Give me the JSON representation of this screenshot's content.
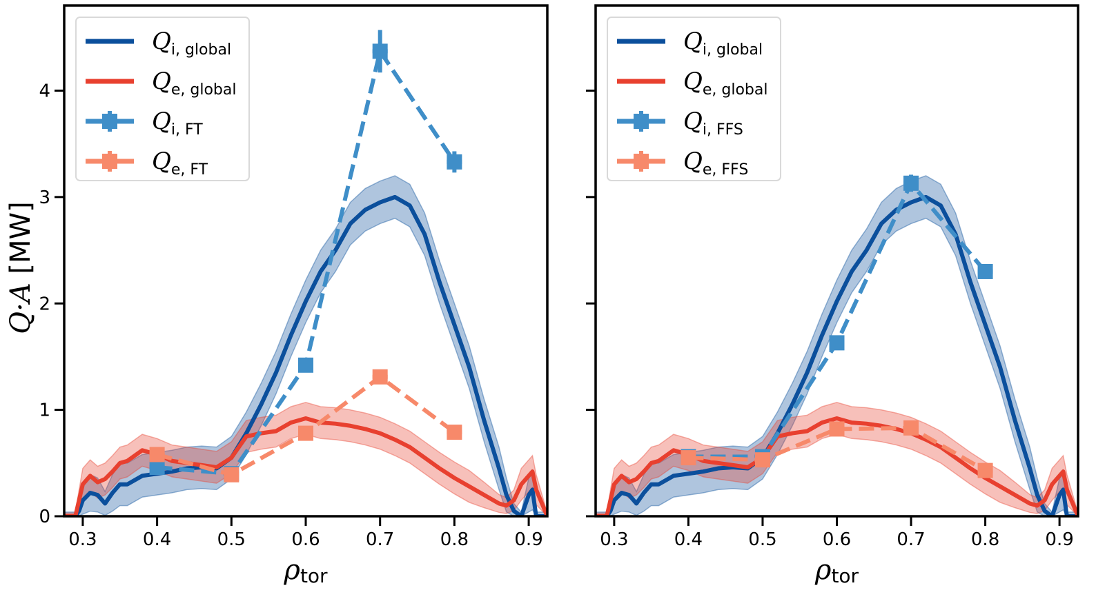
{
  "chart_data": [
    {
      "type": "line",
      "panel": "left",
      "xlabel": "ρtor",
      "ylabel": "Q·A [MW]",
      "xlim": [
        0.275,
        0.925
      ],
      "ylim": [
        0,
        4.8
      ],
      "xticks": [
        "0.3",
        "0.4",
        "0.5",
        "0.6",
        "0.7",
        "0.8",
        "0.9"
      ],
      "yticks": [
        "0",
        "1",
        "2",
        "3",
        "4"
      ],
      "legend_position": "top-left",
      "series": [
        {
          "name": "Q_i,global",
          "legend_main": "Q",
          "legend_sub": "i, global",
          "color": "#0b4f9c",
          "style": "solid-with-band",
          "x": [
            0.275,
            0.29,
            0.295,
            0.3,
            0.31,
            0.32,
            0.33,
            0.34,
            0.35,
            0.36,
            0.38,
            0.4,
            0.42,
            0.44,
            0.46,
            0.48,
            0.5,
            0.52,
            0.54,
            0.56,
            0.58,
            0.6,
            0.62,
            0.64,
            0.66,
            0.68,
            0.7,
            0.72,
            0.74,
            0.76,
            0.78,
            0.8,
            0.82,
            0.84,
            0.86,
            0.87,
            0.88,
            0.89,
            0.9,
            0.905,
            0.91,
            0.925
          ],
          "y": [
            0,
            0,
            0.05,
            0.15,
            0.22,
            0.2,
            0.12,
            0.22,
            0.3,
            0.3,
            0.38,
            0.4,
            0.42,
            0.45,
            0.46,
            0.45,
            0.55,
            0.78,
            1.05,
            1.35,
            1.7,
            2.02,
            2.3,
            2.5,
            2.75,
            2.88,
            2.95,
            3.0,
            2.92,
            2.65,
            2.2,
            1.8,
            1.4,
            0.9,
            0.45,
            0.2,
            0.05,
            0,
            0.2,
            0.25,
            0,
            0
          ],
          "band": 0.2
        },
        {
          "name": "Q_e,global",
          "legend_main": "Q",
          "legend_sub": "e, global",
          "color": "#e8402f",
          "style": "solid-with-band",
          "x": [
            0.275,
            0.29,
            0.295,
            0.3,
            0.31,
            0.32,
            0.33,
            0.34,
            0.35,
            0.36,
            0.38,
            0.4,
            0.42,
            0.44,
            0.46,
            0.48,
            0.5,
            0.52,
            0.54,
            0.56,
            0.58,
            0.6,
            0.62,
            0.64,
            0.66,
            0.68,
            0.7,
            0.72,
            0.74,
            0.76,
            0.78,
            0.8,
            0.82,
            0.84,
            0.86,
            0.87,
            0.88,
            0.89,
            0.9,
            0.905,
            0.91,
            0.925
          ],
          "y": [
            0,
            0,
            0.15,
            0.3,
            0.38,
            0.32,
            0.35,
            0.42,
            0.5,
            0.52,
            0.62,
            0.58,
            0.52,
            0.5,
            0.48,
            0.46,
            0.55,
            0.75,
            0.78,
            0.8,
            0.88,
            0.92,
            0.88,
            0.87,
            0.85,
            0.82,
            0.78,
            0.72,
            0.65,
            0.55,
            0.45,
            0.36,
            0.28,
            0.2,
            0.12,
            0.1,
            0.15,
            0.3,
            0.38,
            0.42,
            0.25,
            0
          ],
          "band": 0.15
        },
        {
          "name": "Q_i,FT",
          "legend_main": "Q",
          "legend_sub": "i, FT",
          "color": "#3f8ec8",
          "style": "dashed-markers",
          "x": [
            0.4,
            0.5,
            0.6,
            0.7,
            0.8
          ],
          "y": [
            0.46,
            0.4,
            1.42,
            4.37,
            3.33
          ],
          "yerr": [
            0.03,
            0.03,
            0.06,
            0.2,
            0.1
          ]
        },
        {
          "name": "Q_e,FT",
          "legend_main": "Q",
          "legend_sub": "e, FT",
          "color": "#f7896a",
          "style": "dashed-markers",
          "x": [
            0.4,
            0.5,
            0.6,
            0.7,
            0.8
          ],
          "y": [
            0.58,
            0.39,
            0.78,
            1.31,
            0.79
          ],
          "yerr": [
            0.03,
            0.03,
            0.03,
            0.05,
            0.03
          ]
        }
      ]
    },
    {
      "type": "line",
      "panel": "right",
      "xlabel": "ρtor",
      "ylabel": "",
      "xlim": [
        0.275,
        0.925
      ],
      "ylim": [
        0,
        4.8
      ],
      "xticks": [
        "0.3",
        "0.4",
        "0.5",
        "0.6",
        "0.7",
        "0.8",
        "0.9"
      ],
      "yticks": [
        "0",
        "1",
        "2",
        "3",
        "4"
      ],
      "legend_position": "top-left",
      "series": [
        {
          "name": "Q_i,global",
          "legend_main": "Q",
          "legend_sub": "i, global",
          "color": "#0b4f9c",
          "style": "solid-with-band",
          "x": [
            0.275,
            0.29,
            0.295,
            0.3,
            0.31,
            0.32,
            0.33,
            0.34,
            0.35,
            0.36,
            0.38,
            0.4,
            0.42,
            0.44,
            0.46,
            0.48,
            0.5,
            0.52,
            0.54,
            0.56,
            0.58,
            0.6,
            0.62,
            0.64,
            0.66,
            0.68,
            0.7,
            0.72,
            0.74,
            0.76,
            0.78,
            0.8,
            0.82,
            0.84,
            0.86,
            0.87,
            0.88,
            0.89,
            0.9,
            0.905,
            0.91,
            0.925
          ],
          "y": [
            0,
            0,
            0.05,
            0.15,
            0.22,
            0.2,
            0.12,
            0.22,
            0.3,
            0.3,
            0.38,
            0.4,
            0.42,
            0.45,
            0.46,
            0.45,
            0.55,
            0.78,
            1.05,
            1.35,
            1.7,
            2.02,
            2.3,
            2.5,
            2.75,
            2.88,
            2.95,
            3.0,
            2.92,
            2.65,
            2.2,
            1.8,
            1.4,
            0.9,
            0.45,
            0.2,
            0.05,
            0,
            0.2,
            0.25,
            0,
            0
          ],
          "band": 0.2
        },
        {
          "name": "Q_e,global",
          "legend_main": "Q",
          "legend_sub": "e, global",
          "color": "#e8402f",
          "style": "solid-with-band",
          "x": [
            0.275,
            0.29,
            0.295,
            0.3,
            0.31,
            0.32,
            0.33,
            0.34,
            0.35,
            0.36,
            0.38,
            0.4,
            0.42,
            0.44,
            0.46,
            0.48,
            0.5,
            0.52,
            0.54,
            0.56,
            0.58,
            0.6,
            0.62,
            0.64,
            0.66,
            0.68,
            0.7,
            0.72,
            0.74,
            0.76,
            0.78,
            0.8,
            0.82,
            0.84,
            0.86,
            0.87,
            0.88,
            0.89,
            0.9,
            0.905,
            0.91,
            0.925
          ],
          "y": [
            0,
            0,
            0.15,
            0.3,
            0.38,
            0.32,
            0.35,
            0.42,
            0.5,
            0.52,
            0.62,
            0.58,
            0.52,
            0.5,
            0.48,
            0.46,
            0.55,
            0.75,
            0.78,
            0.8,
            0.88,
            0.92,
            0.88,
            0.87,
            0.85,
            0.82,
            0.78,
            0.72,
            0.65,
            0.55,
            0.45,
            0.36,
            0.28,
            0.2,
            0.12,
            0.1,
            0.15,
            0.3,
            0.38,
            0.42,
            0.25,
            0
          ],
          "band": 0.15
        },
        {
          "name": "Q_i,FFS",
          "legend_main": "Q",
          "legend_sub": "i, FFS",
          "color": "#3f8ec8",
          "style": "dashed-markers",
          "x": [
            0.4,
            0.5,
            0.6,
            0.7,
            0.8
          ],
          "y": [
            0.56,
            0.56,
            1.63,
            3.13,
            2.3
          ],
          "yerr": [
            0.03,
            0.03,
            0.05,
            0.08,
            0.05
          ]
        },
        {
          "name": "Q_e,FFS",
          "legend_main": "Q",
          "legend_sub": "e, FFS",
          "color": "#f7896a",
          "style": "dashed-markers",
          "x": [
            0.4,
            0.5,
            0.6,
            0.7,
            0.8
          ],
          "y": [
            0.55,
            0.53,
            0.82,
            0.83,
            0.43
          ],
          "yerr": [
            0.03,
            0.03,
            0.03,
            0.03,
            0.03
          ]
        }
      ]
    }
  ]
}
